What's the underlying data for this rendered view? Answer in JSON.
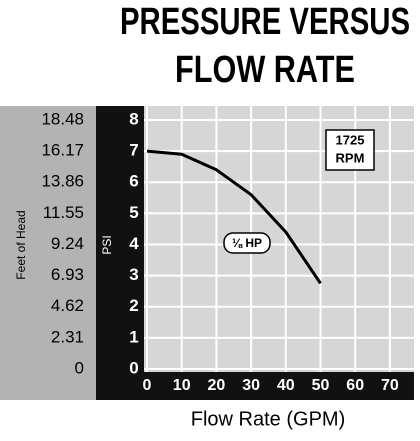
{
  "chart_data": {
    "type": "line",
    "title": "PRESSURE VERSUS",
    "subtitle": "FLOW RATE",
    "x_label": "Flow Rate (GPM)",
    "y_label": "PSI",
    "y2_label": "Feet of Head",
    "annotations": [
      "1725",
      "RPM",
      "⅛ HP"
    ],
    "x": [
      0,
      10,
      20,
      30,
      40,
      50
    ],
    "series": [
      {
        "color": "#000000",
        "values": [
          7,
          6.9,
          6.4,
          5.6,
          4.4,
          2.75
        ]
      }
    ],
    "xlim": [
      0,
      75
    ],
    "xticks": [
      0,
      10,
      20,
      30,
      40,
      50,
      60,
      70
    ],
    "ylim": [
      0,
      8
    ],
    "yticks": [
      0,
      1,
      2,
      3,
      4,
      5,
      6,
      7,
      8
    ],
    "y2lim": [
      0,
      18.48
    ],
    "y2ticks": [
      0,
      2.31,
      4.62,
      6.93,
      9.24,
      11.55,
      13.86,
      16.17,
      18.48
    ],
    "grid": true
  }
}
